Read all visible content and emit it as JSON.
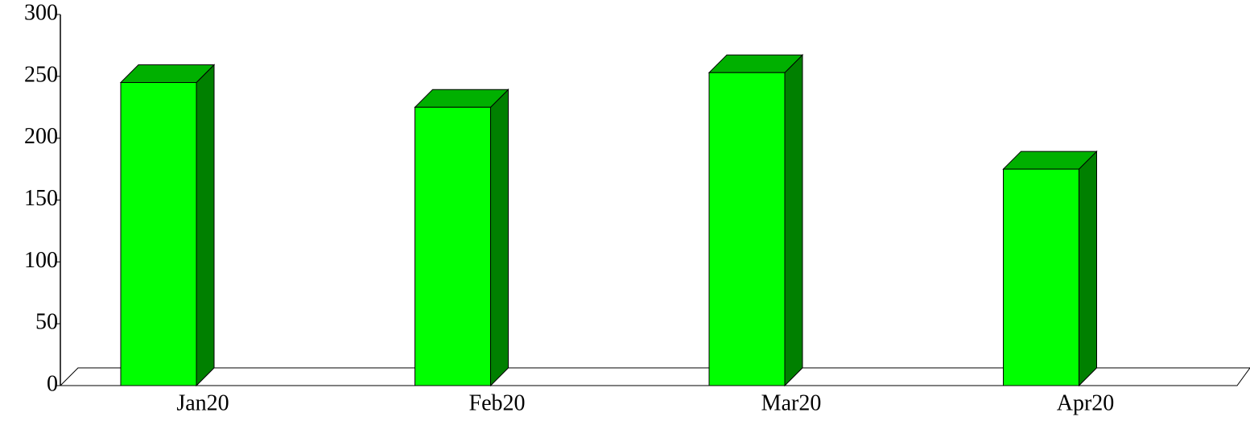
{
  "chart_data": {
    "type": "bar3d",
    "categories": [
      "Jan20",
      "Feb20",
      "Mar20",
      "Apr20"
    ],
    "values": [
      245,
      225,
      253,
      175
    ],
    "color": "#00ff00",
    "side_color": "#008000",
    "top_color": "#00b000",
    "ylim": [
      0,
      300
    ],
    "yticks": [
      0,
      50,
      100,
      150,
      200,
      250,
      300
    ]
  }
}
